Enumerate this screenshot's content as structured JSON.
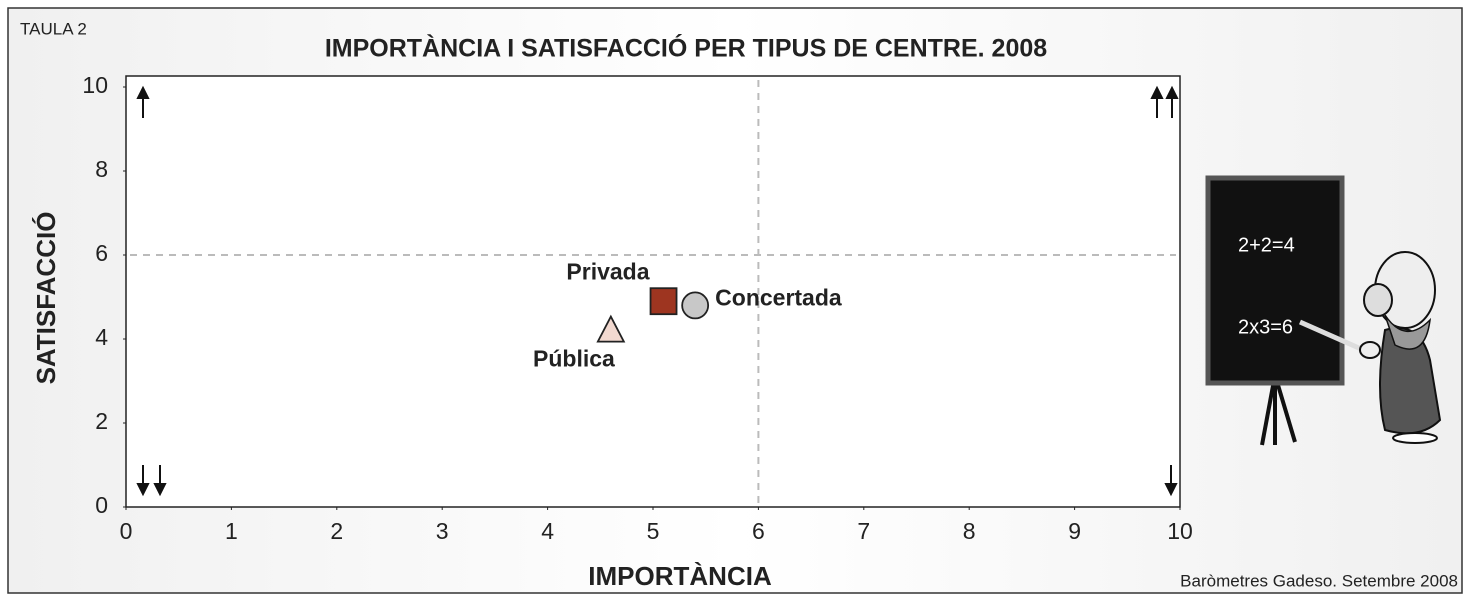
{
  "chart_data": {
    "type": "scatter",
    "label": "TAULA 2",
    "title": "IMPORTÀNCIA I SATISFACCIÓ PER TIPUS DE CENTRE. 2008",
    "x_label": "IMPORTÀNCIA",
    "y_label": "SATISFACCIÓ",
    "source": "Baròmetres Gadeso. Setembre 2008",
    "xlim": [
      0,
      10
    ],
    "ylim": [
      0,
      10
    ],
    "xticks": [
      0,
      1,
      2,
      3,
      4,
      5,
      6,
      7,
      8,
      9,
      10
    ],
    "yticks": [
      0,
      2,
      4,
      6,
      8,
      10
    ],
    "reference_lines": {
      "x": 6,
      "y": 6
    },
    "series": [
      {
        "name": "Pública",
        "color": "#f2d9d0",
        "marker": "triangle",
        "x": [
          4.6
        ],
        "values": [
          4.2
        ]
      },
      {
        "name": "Privada",
        "color": "#9e3520",
        "marker": "square",
        "x": [
          5.1
        ],
        "values": [
          4.9
        ]
      },
      {
        "name": "Concertada",
        "color": "#c8c8c8",
        "marker": "circle",
        "x": [
          5.4
        ],
        "values": [
          4.8
        ]
      }
    ]
  },
  "illustration": {
    "board_lines": [
      "2+2=4",
      "2x3=6"
    ]
  }
}
